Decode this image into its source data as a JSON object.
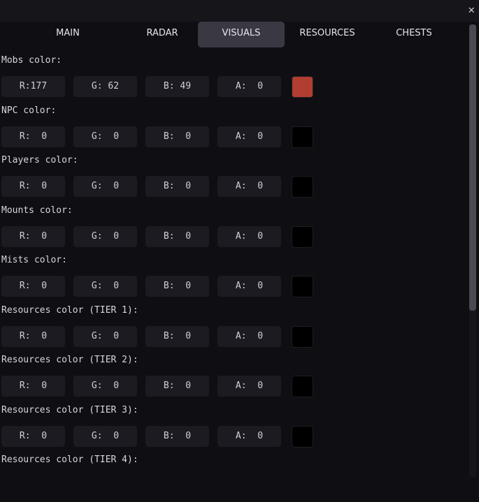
{
  "window": {
    "close_icon": "close-icon"
  },
  "tabs": [
    {
      "label": "MAIN",
      "selected": false
    },
    {
      "label": "RADAR",
      "selected": false
    },
    {
      "label": "VISUALS",
      "selected": true
    },
    {
      "label": "RESOURCES",
      "selected": false
    },
    {
      "label": "CHESTS",
      "selected": false
    }
  ],
  "sections": [
    {
      "label": "Mobs color:",
      "r": "R:177",
      "g": "G: 62",
      "b": "B: 49",
      "a": "A:  0",
      "swatch": "#b13e31"
    },
    {
      "label": "NPC color:",
      "r": "R:  0",
      "g": "G:  0",
      "b": "B:  0",
      "a": "A:  0",
      "swatch": "#000000"
    },
    {
      "label": "Players color:",
      "r": "R:  0",
      "g": "G:  0",
      "b": "B:  0",
      "a": "A:  0",
      "swatch": "#000000"
    },
    {
      "label": "Mounts color:",
      "r": "R:  0",
      "g": "G:  0",
      "b": "B:  0",
      "a": "A:  0",
      "swatch": "#000000"
    },
    {
      "label": "Mists color:",
      "r": "R:  0",
      "g": "G:  0",
      "b": "B:  0",
      "a": "A:  0",
      "swatch": "#000000"
    },
    {
      "label": "Resources color (TIER 1):",
      "r": "R:  0",
      "g": "G:  0",
      "b": "B:  0",
      "a": "A:  0",
      "swatch": "#000000"
    },
    {
      "label": "Resources color (TIER 2):",
      "r": "R:  0",
      "g": "G:  0",
      "b": "B:  0",
      "a": "A:  0",
      "swatch": "#000000"
    },
    {
      "label": "Resources color (TIER 3):",
      "r": "R:  0",
      "g": "G:  0",
      "b": "B:  0",
      "a": "A:  0",
      "swatch": "#000000"
    },
    {
      "label": "Resources color (TIER 4):",
      "r": "",
      "g": "",
      "b": "",
      "a": "",
      "swatch": ""
    }
  ],
  "scrollbar": {
    "position_fraction": 0
  }
}
